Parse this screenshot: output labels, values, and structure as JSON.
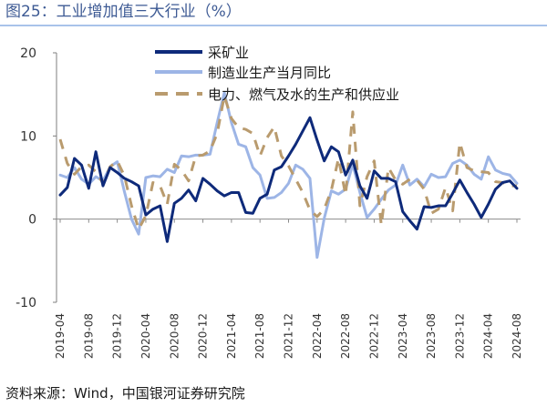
{
  "figure": {
    "title": "图25：工业增加值三大行业（%）",
    "source": "资料来源：Wind，中国银河证券研究院"
  },
  "colors": {
    "mining": "#0e2a7a",
    "manufacturing": "#9db5e6",
    "utilities": "#b99b6e",
    "axis": "#333333",
    "title": "#3d5a94"
  },
  "chart_data": {
    "type": "line",
    "title": "工业增加值三大行业（%）",
    "xlabel": "",
    "ylabel": "",
    "ylim": [
      -10,
      20
    ],
    "yticks": [
      -10,
      0,
      10,
      20
    ],
    "x": [
      "2019-04",
      "2019-05",
      "2019-06",
      "2019-07",
      "2019-08",
      "2019-09",
      "2019-10",
      "2019-11",
      "2019-12",
      "2020-01",
      "2020-02",
      "2020-03",
      "2020-04",
      "2020-05",
      "2020-06",
      "2020-07",
      "2020-08",
      "2020-09",
      "2020-10",
      "2020-11",
      "2020-12",
      "2021-01",
      "2021-02",
      "2021-03",
      "2021-04",
      "2021-05",
      "2021-06",
      "2021-07",
      "2021-08",
      "2021-09",
      "2021-10",
      "2021-11",
      "2021-12",
      "2022-01",
      "2022-02",
      "2022-03",
      "2022-04",
      "2022-05",
      "2022-06",
      "2022-07",
      "2022-08",
      "2022-09",
      "2022-10",
      "2022-11",
      "2022-12",
      "2023-01",
      "2023-02",
      "2023-03",
      "2023-04",
      "2023-05",
      "2023-06",
      "2023-07",
      "2023-08",
      "2023-09",
      "2023-10",
      "2023-11",
      "2023-12",
      "2024-01",
      "2024-02",
      "2024-03",
      "2024-04",
      "2024-05",
      "2024-06",
      "2024-07",
      "2024-08"
    ],
    "xtick_labels": [
      "2019-04",
      "2019-08",
      "2019-12",
      "2020-04",
      "2020-08",
      "2020-12",
      "2021-04",
      "2021-08",
      "2021-12",
      "2022-04",
      "2022-08",
      "2022-12",
      "2023-04",
      "2023-08",
      "2023-12",
      "2024-04",
      "2024-08"
    ],
    "series": [
      {
        "name": "采矿业",
        "style": "solid",
        "values": [
          2.9,
          3.8,
          7.3,
          6.5,
          3.7,
          8.1,
          4.0,
          6.2,
          5.6,
          4.9,
          4.5,
          4.0,
          0.5,
          1.2,
          1.6,
          -2.7,
          1.9,
          2.5,
          3.5,
          2.2,
          4.9,
          4.2,
          3.4,
          2.8,
          3.2,
          3.2,
          0.8,
          0.7,
          2.5,
          3.0,
          5.9,
          6.3,
          7.6,
          9.0,
          10.6,
          12.2,
          9.5,
          7.0,
          8.7,
          8.1,
          5.3,
          7.1,
          4.0,
          2.5,
          5.8,
          4.9,
          4.9,
          4.5,
          0.9,
          -0.2,
          -1.2,
          1.5,
          1.4,
          1.6,
          1.6,
          3.1,
          4.7,
          3.2,
          1.8,
          0.2,
          1.8,
          3.6,
          4.4,
          4.6,
          3.7
        ]
      },
      {
        "name": "制造业生产当月同比",
        "style": "solid",
        "values": [
          5.3,
          5.0,
          6.2,
          4.8,
          4.2,
          5.1,
          4.6,
          6.3,
          6.9,
          3.3,
          0.0,
          -1.8,
          5.0,
          5.2,
          5.1,
          6.0,
          5.6,
          7.6,
          7.5,
          7.7,
          7.7,
          7.8,
          11.6,
          15.2,
          11.6,
          9.0,
          8.7,
          6.2,
          5.3,
          2.5,
          2.6,
          3.2,
          4.3,
          6.5,
          6.0,
          4.9,
          -4.6,
          0.1,
          3.4,
          3.0,
          3.6,
          6.6,
          3.2,
          0.2,
          1.2,
          2.4,
          3.5,
          4.1,
          6.5,
          4.1,
          4.8,
          3.9,
          5.4,
          5.0,
          5.1,
          6.7,
          7.1,
          6.5,
          5.4,
          4.8,
          7.5,
          5.9,
          5.5,
          5.3,
          4.3
        ]
      },
      {
        "name": "电力、燃气及水的生产和供应业",
        "style": "dashed",
        "values": [
          9.6,
          6.7,
          5.4,
          6.3,
          6.5,
          5.7,
          4.3,
          6.3,
          7.0,
          5.2,
          1.6,
          -1.2,
          0.4,
          4.4,
          4.0,
          1.8,
          6.6,
          5.9,
          4.6,
          7.6,
          7.7,
          8.2,
          10.3,
          14.8,
          12.1,
          11.0,
          10.8,
          10.3,
          7.6,
          9.8,
          11.1,
          7.6,
          6.4,
          4.8,
          3.2,
          1.1,
          0.3,
          1.2,
          3.5,
          7.3,
          2.9,
          12.9,
          1.6,
          5.1,
          7.0,
          -0.7,
          6.2,
          4.7,
          4.2,
          4.8,
          4.7,
          3.6,
          0.7,
          1.2,
          3.8,
          1.0,
          9.2,
          6.2,
          5.8,
          5.7,
          5.6,
          4.5,
          4.4,
          4.0,
          4.0
        ]
      }
    ],
    "legend": [
      "采矿业",
      "制造业生产当月同比",
      "电力、燃气及水的生产和供应业"
    ],
    "legend_position": "top-center",
    "grid": false
  }
}
